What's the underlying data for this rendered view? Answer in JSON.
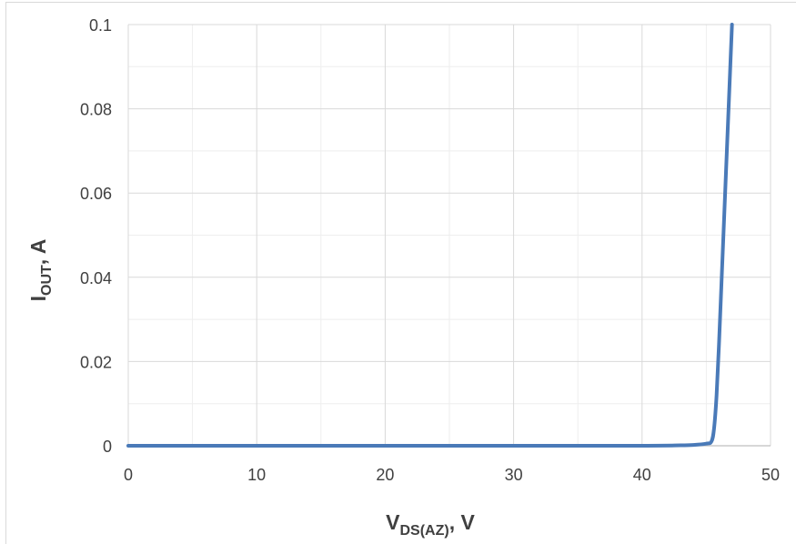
{
  "chart_data": {
    "type": "line",
    "title": "",
    "xlabel": {
      "main": "V",
      "sub": "DS(AZ)",
      "tail": ", V"
    },
    "ylabel": {
      "main": "I",
      "sub": "OUT",
      "tail": ", A"
    },
    "xlim": [
      0,
      50
    ],
    "ylim": [
      0,
      0.1
    ],
    "x_major_ticks": [
      0,
      10,
      20,
      30,
      40,
      50
    ],
    "x_minor_ticks": [
      5,
      15,
      25,
      35,
      45
    ],
    "y_major_ticks": [
      0,
      0.02,
      0.04,
      0.06,
      0.08,
      0.1
    ],
    "y_minor_ticks": [
      0.01,
      0.03,
      0.05,
      0.07,
      0.09
    ],
    "x_tick_labels": [
      "0",
      "10",
      "20",
      "30",
      "40",
      "50"
    ],
    "y_tick_labels": [
      "0",
      "0.02",
      "0.04",
      "0.06",
      "0.08",
      "0.1"
    ],
    "grid": true,
    "legend": "none",
    "series": [
      {
        "color": "#4a7ab8",
        "x": [
          0,
          10,
          20,
          30,
          40,
          43,
          44,
          45,
          45.4,
          45.6,
          45.8,
          46.0,
          46.2,
          46.4,
          46.6,
          46.8,
          47.0
        ],
        "y": [
          0,
          0,
          0,
          0,
          0,
          0.0001,
          0.0002,
          0.0005,
          0.001,
          0.004,
          0.012,
          0.025,
          0.04,
          0.055,
          0.07,
          0.085,
          0.1
        ]
      }
    ]
  }
}
